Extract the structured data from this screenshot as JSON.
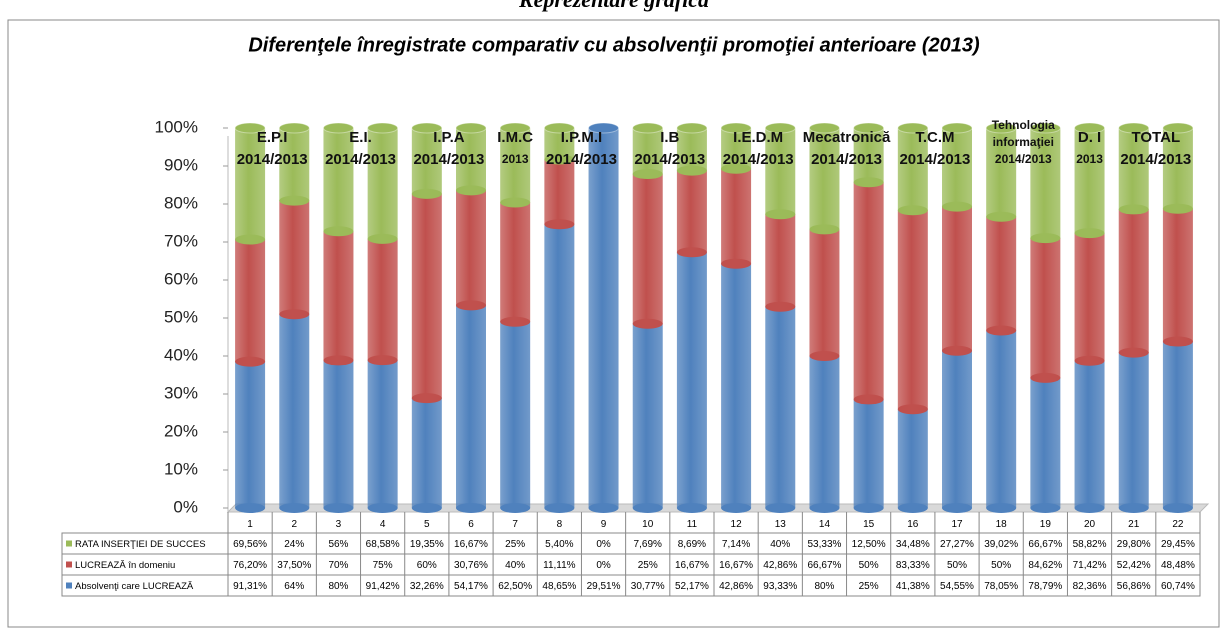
{
  "heading": "Reprezentare grafică",
  "chart_data": {
    "type": "bar",
    "stacking": "percent",
    "title": "Diferenţele înregistrate comparativ cu absolvenţii promoţiei anterioare (2013)",
    "annotations": [
      {
        "lines": [
          "E.P.I",
          "2014/2013"
        ]
      },
      {
        "lines": [
          "E.I.",
          "2014/2013"
        ]
      },
      {
        "lines": [
          "I.P.A",
          "2014/2013"
        ]
      },
      {
        "lines": [
          "I.M.C",
          "2013"
        ]
      },
      {
        "lines": [
          "I.P.M.I",
          "2014/2013"
        ]
      },
      {
        "lines": [
          "I.B",
          "2014/2013"
        ]
      },
      {
        "lines": [
          "I.E.D.M",
          "2014/2013"
        ]
      },
      {
        "lines": [
          "Mecatronică",
          "2014/2013"
        ]
      },
      {
        "lines": [
          "T.C.M",
          "2014/2013"
        ]
      },
      {
        "lines": [
          "Tehnologia",
          "informaţiei",
          "2014/2013"
        ]
      },
      {
        "lines": [
          "D. I",
          "2013"
        ]
      },
      {
        "lines": [
          "TOTAL",
          "2014/2013"
        ]
      }
    ],
    "categories": [
      "1",
      "2",
      "3",
      "4",
      "5",
      "6",
      "7",
      "8",
      "9",
      "10",
      "11",
      "12",
      "13",
      "14",
      "15",
      "16",
      "17",
      "18",
      "19",
      "20",
      "21",
      "22"
    ],
    "series": [
      {
        "name": "RATA INSERŢIEI  DE SUCCES",
        "color": "#9bbb59",
        "values": [
          69.56,
          24,
          56,
          68.58,
          19.35,
          16.67,
          25,
          5.4,
          0,
          7.69,
          8.69,
          7.14,
          40,
          53.33,
          12.5,
          34.48,
          27.27,
          39.02,
          66.67,
          58.82,
          29.8,
          29.45
        ],
        "value_labels": [
          "69,56%",
          "24%",
          "56%",
          "68,58%",
          "19,35%",
          "16,67%",
          "25%",
          "5,40%",
          "0%",
          "7,69%",
          "8,69%",
          "7,14%",
          "40%",
          "53,33%",
          "12,50%",
          "34,48%",
          "27,27%",
          "39,02%",
          "66,67%",
          "58,82%",
          "29,80%",
          "29,45%"
        ]
      },
      {
        "name": "LUCREAZĂ în  domeniu",
        "color": "#c0504d",
        "values": [
          76.2,
          37.5,
          70,
          75,
          60,
          30.76,
          40,
          11.11,
          0,
          25,
          16.67,
          16.67,
          42.86,
          66.67,
          50,
          83.33,
          50,
          50,
          84.62,
          71.42,
          52.42,
          48.48
        ],
        "value_labels": [
          "76,20%",
          "37,50%",
          "70%",
          "75%",
          "60%",
          "30,76%",
          "40%",
          "11,11%",
          "0%",
          "25%",
          "16,67%",
          "16,67%",
          "42,86%",
          "66,67%",
          "50%",
          "83,33%",
          "50%",
          "50%",
          "84,62%",
          "71,42%",
          "52,42%",
          "48,48%"
        ]
      },
      {
        "name": "Absolvenţi care LUCREAZĂ",
        "color": "#4f81bd",
        "values": [
          91.31,
          64,
          80,
          91.42,
          32.26,
          54.17,
          62.5,
          48.65,
          29.51,
          30.77,
          52.17,
          42.86,
          93.33,
          80,
          25,
          41.38,
          54.55,
          78.05,
          78.79,
          82.36,
          56.86,
          60.74
        ],
        "value_labels": [
          "91,31%",
          "64%",
          "80%",
          "91,42%",
          "32,26%",
          "54,17%",
          "62,50%",
          "48,65%",
          "29,51%",
          "30,77%",
          "52,17%",
          "42,86%",
          "93,33%",
          "80%",
          "25%",
          "41,38%",
          "54,55%",
          "78,05%",
          "78,79%",
          "82,36%",
          "56,86%",
          "60,74%"
        ]
      }
    ],
    "ylim": [
      0,
      100
    ],
    "yticks": [
      {
        "value": 0,
        "label": "0%"
      },
      {
        "value": 10,
        "label": "10%"
      },
      {
        "value": 20,
        "label": "20%"
      },
      {
        "value": 30,
        "label": "30%"
      },
      {
        "value": 40,
        "label": "40%"
      },
      {
        "value": 50,
        "label": "50%"
      },
      {
        "value": 60,
        "label": "60%"
      },
      {
        "value": 70,
        "label": "70%"
      },
      {
        "value": 80,
        "label": "80%"
      },
      {
        "value": 90,
        "label": "90%"
      },
      {
        "value": 100,
        "label": "100%"
      }
    ],
    "grid": false
  }
}
